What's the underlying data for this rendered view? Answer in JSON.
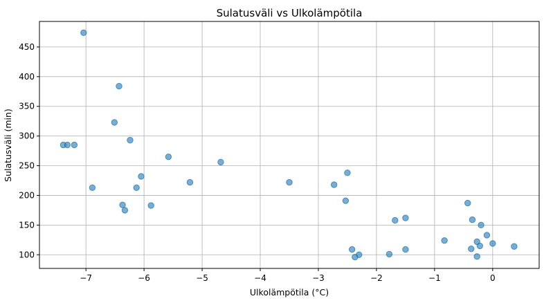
{
  "chart_data": {
    "type": "scatter",
    "title": "Sulatusväli vs Ulkolämpötila",
    "xlabel": "Ulkolämpötila (°C)",
    "ylabel": "Sulatusväli (min)",
    "xlim": [
      -7.8,
      0.8
    ],
    "ylim": [
      77,
      493
    ],
    "xticks": [
      -7,
      -6,
      -5,
      -4,
      -3,
      -2,
      -1,
      0
    ],
    "xtick_labels": [
      "−7",
      "−6",
      "−5",
      "−4",
      "−3",
      "−2",
      "−1",
      "0"
    ],
    "yticks": [
      100,
      150,
      200,
      250,
      300,
      350,
      400,
      450
    ],
    "ytick_labels": [
      "100",
      "150",
      "200",
      "250",
      "300",
      "350",
      "400",
      "450"
    ],
    "grid": true,
    "points": [
      {
        "x": -7.04,
        "y": 474
      },
      {
        "x": -6.43,
        "y": 384
      },
      {
        "x": -6.51,
        "y": 323
      },
      {
        "x": -7.39,
        "y": 285
      },
      {
        "x": -7.32,
        "y": 285
      },
      {
        "x": -7.2,
        "y": 285
      },
      {
        "x": -6.24,
        "y": 293
      },
      {
        "x": -5.58,
        "y": 265
      },
      {
        "x": -4.68,
        "y": 256
      },
      {
        "x": -6.05,
        "y": 232
      },
      {
        "x": -6.89,
        "y": 213
      },
      {
        "x": -6.13,
        "y": 213
      },
      {
        "x": -5.21,
        "y": 222
      },
      {
        "x": -6.37,
        "y": 184
      },
      {
        "x": -6.33,
        "y": 175
      },
      {
        "x": -5.88,
        "y": 183
      },
      {
        "x": -3.5,
        "y": 222
      },
      {
        "x": -2.73,
        "y": 218
      },
      {
        "x": -2.5,
        "y": 238
      },
      {
        "x": -2.53,
        "y": 191
      },
      {
        "x": -1.68,
        "y": 158
      },
      {
        "x": -1.5,
        "y": 162
      },
      {
        "x": -2.42,
        "y": 109
      },
      {
        "x": -2.37,
        "y": 96
      },
      {
        "x": -2.3,
        "y": 100
      },
      {
        "x": -1.78,
        "y": 101
      },
      {
        "x": -1.5,
        "y": 109
      },
      {
        "x": -0.83,
        "y": 124
      },
      {
        "x": -0.43,
        "y": 187
      },
      {
        "x": -0.35,
        "y": 159
      },
      {
        "x": -0.2,
        "y": 150
      },
      {
        "x": -0.1,
        "y": 133
      },
      {
        "x": -0.27,
        "y": 122
      },
      {
        "x": -0.22,
        "y": 115
      },
      {
        "x": -0.37,
        "y": 110
      },
      {
        "x": 0.0,
        "y": 119
      },
      {
        "x": -0.27,
        "y": 97
      },
      {
        "x": 0.37,
        "y": 114
      }
    ]
  }
}
